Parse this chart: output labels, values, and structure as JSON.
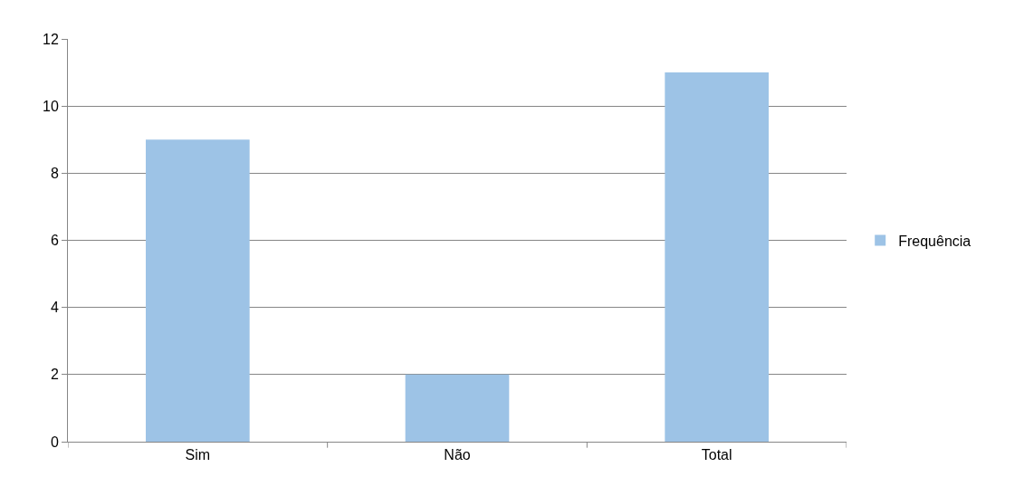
{
  "chart_data": {
    "type": "bar",
    "categories": [
      "Sim",
      "Não",
      "Total"
    ],
    "series": [
      {
        "name": "Frequência",
        "color": "#9dc3e6",
        "values": [
          9,
          2,
          11
        ]
      }
    ],
    "ylim": [
      0,
      12
    ],
    "yticks": [
      0,
      2,
      4,
      6,
      8,
      10,
      12
    ],
    "grid": "y",
    "legend": "right"
  }
}
